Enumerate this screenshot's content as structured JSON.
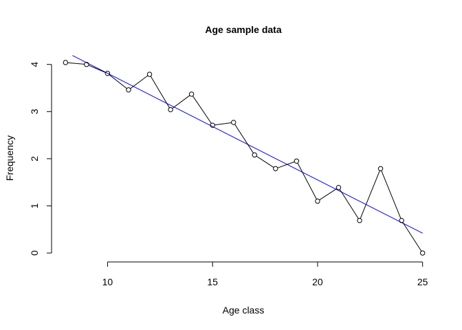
{
  "chart_data": {
    "type": "line",
    "title": "Age sample data",
    "xlabel": "Age class",
    "ylabel": "Frequency",
    "xlim": [
      7.4,
      25.6
    ],
    "ylim": [
      -0.16,
      4.2
    ],
    "x_ticks": [
      10,
      15,
      20,
      25
    ],
    "y_ticks": [
      0,
      1,
      2,
      3,
      4
    ],
    "x_tick_labels": [
      "10",
      "15",
      "20",
      "25"
    ],
    "y_tick_labels": [
      "0",
      "1",
      "2",
      "3",
      "4"
    ],
    "grid": false,
    "series": [
      {
        "style": "line-with-open-circles",
        "color": "#000000",
        "x": [
          8,
          9,
          10,
          11,
          12,
          13,
          14,
          15,
          16,
          17,
          18,
          19,
          20,
          21,
          22,
          23,
          24,
          25
        ],
        "y": [
          4.04,
          4.0,
          3.81,
          3.46,
          3.79,
          3.04,
          3.37,
          2.71,
          2.77,
          2.08,
          1.79,
          1.95,
          1.1,
          1.39,
          0.69,
          1.79,
          0.69,
          0.0
        ]
      }
    ],
    "fit_line": {
      "color": "#0000ff",
      "x": [
        8.33,
        25.0
      ],
      "y": [
        4.19,
        0.42
      ]
    }
  }
}
